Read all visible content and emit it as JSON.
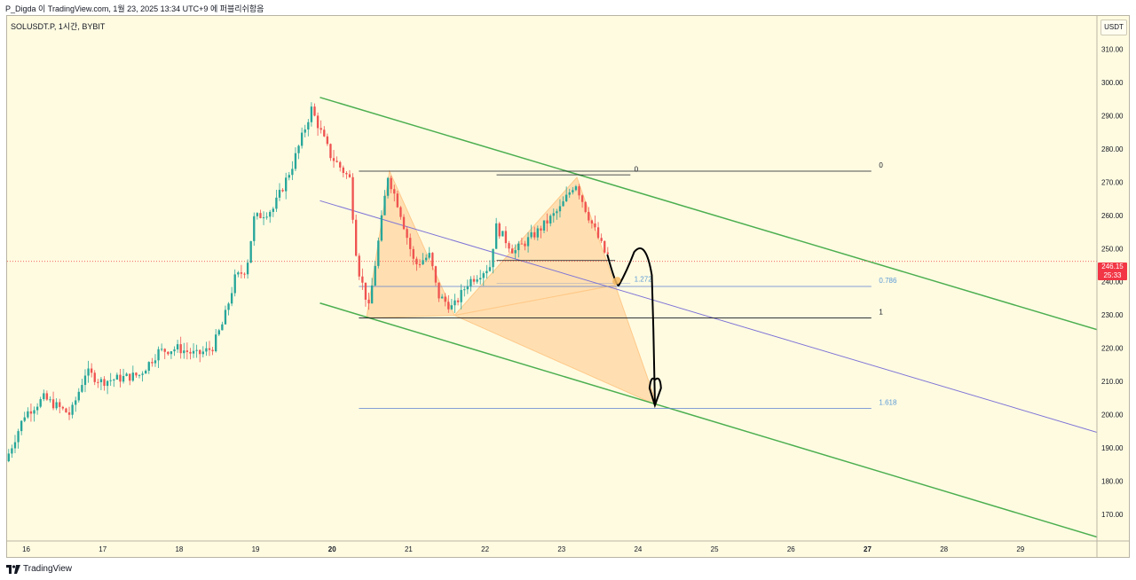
{
  "header": {
    "publisher_line": "P_Digda 이 TradingView.com, 1월 23, 2025 13:34 UTC+9 에 퍼블리쉬함음"
  },
  "symbol_line": "SOLUSDT.P, 1시간, BYBIT",
  "currency_button": "USDT",
  "footer_brand": "TradingView",
  "current_price": {
    "value": "246.15",
    "countdown": "25:33",
    "color": "#f23645"
  },
  "colors": {
    "background": "#fffbe1",
    "up_candle": "#26a69a",
    "down_candle": "#ef5350",
    "channel": "#4caf50",
    "mid_line": "#7e74d6",
    "pattern_fill": "#ffc98a",
    "fib_line_black": "#131722",
    "fib_line_blue": "#5b7fd0",
    "fib_label_blue": "#5b9bd5",
    "drawing": "#000000",
    "drawing_highlight": "#f5b860"
  },
  "chart_data": {
    "type": "candlestick",
    "symbol": "SOLUSDT.P",
    "interval": "1시간",
    "exchange": "BYBIT",
    "ylim": [
      162,
      320
    ],
    "yticks": [
      170,
      180,
      190,
      200,
      210,
      220,
      230,
      240,
      250,
      260,
      270,
      280,
      290,
      300,
      310
    ],
    "ytick_labels": [
      "170.00",
      "180.00",
      "190.00",
      "200.00",
      "210.00",
      "220.00",
      "230.00",
      "240.00",
      "250.00",
      "260.00",
      "270.00",
      "280.00",
      "290.00",
      "300.00",
      "310.00"
    ],
    "x_unit": "day of month (Jan 2025)",
    "xlim": [
      15.75,
      30
    ],
    "xticks": [
      16,
      17,
      18,
      19,
      20,
      21,
      22,
      23,
      24,
      25,
      26,
      27,
      28,
      29
    ],
    "xtick_labels": [
      "16",
      "17",
      "18",
      "19",
      "20",
      "21",
      "22",
      "23",
      "24",
      "25",
      "26",
      "27",
      "28",
      "29"
    ],
    "bold_xticks": [
      "20",
      "27"
    ],
    "current_price": 246.15,
    "price_path": [
      [
        15.75,
        186
      ],
      [
        16.0,
        200
      ],
      [
        16.25,
        205
      ],
      [
        16.6,
        200
      ],
      [
        16.8,
        213
      ],
      [
        17.0,
        210
      ],
      [
        17.5,
        212
      ],
      [
        17.75,
        219
      ],
      [
        18.0,
        220
      ],
      [
        18.25,
        218
      ],
      [
        18.45,
        220
      ],
      [
        18.6,
        228
      ],
      [
        18.75,
        241
      ],
      [
        18.9,
        244
      ],
      [
        19.0,
        259
      ],
      [
        19.25,
        262
      ],
      [
        19.5,
        275
      ],
      [
        19.75,
        292
      ],
      [
        20.0,
        278
      ],
      [
        20.25,
        271
      ],
      [
        20.35,
        245
      ],
      [
        20.5,
        232
      ],
      [
        20.75,
        272
      ],
      [
        20.9,
        262
      ],
      [
        21.1,
        245
      ],
      [
        21.3,
        248
      ],
      [
        21.4,
        236
      ],
      [
        21.6,
        232
      ],
      [
        21.8,
        240
      ],
      [
        22.1,
        245
      ],
      [
        22.15,
        257
      ],
      [
        22.4,
        249
      ],
      [
        22.7,
        255
      ],
      [
        23.0,
        262
      ],
      [
        23.2,
        270
      ],
      [
        23.35,
        261
      ],
      [
        23.6,
        248
      ]
    ],
    "drawings": {
      "channel_upper": [
        [
          19.84,
          295.5
        ],
        [
          30.0,
          225.6
        ]
      ],
      "channel_lower": [
        [
          19.84,
          233.6
        ],
        [
          30.0,
          163.2
        ]
      ],
      "channel_mid": [
        [
          19.84,
          264.4
        ],
        [
          30.0,
          194.7
        ]
      ],
      "fib_levels": [
        {
          "label": "0",
          "price": 273.3
        },
        {
          "label": "0.786",
          "price": 238.6
        },
        {
          "label": "1",
          "price": 229.1
        },
        {
          "label": "1.618",
          "price": 201.9
        },
        {
          "label": "1.272",
          "price": 239.5
        }
      ],
      "pattern_points": [
        {
          "x": 20.45,
          "price": 229.1
        },
        {
          "x": 20.75,
          "price": 273.3
        },
        {
          "x": 21.6,
          "price": 229.9
        },
        {
          "x": 23.2,
          "price": 271.4
        },
        {
          "x": 23.7,
          "price": 239.0
        },
        {
          "x": 24.25,
          "price": 202.8
        }
      ],
      "projection_arrow_target": 202.8
    }
  }
}
